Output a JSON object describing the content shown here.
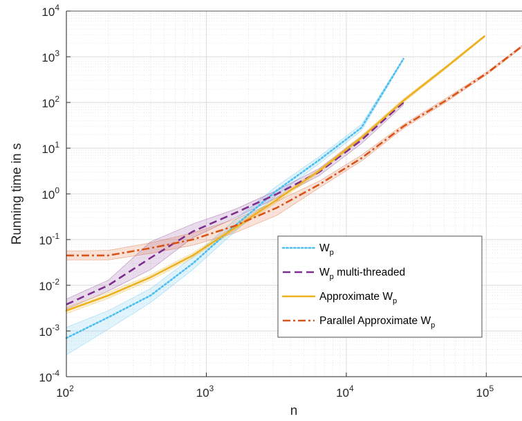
{
  "chart_data": {
    "type": "line",
    "xlabel": "n",
    "ylabel": "Running time in s",
    "x_scale": "log",
    "y_scale": "log",
    "xlim": [
      100,
      180000
    ],
    "ylim": [
      0.0001,
      10000
    ],
    "x_ticks": [
      {
        "value": 100,
        "base": "10",
        "exp": "2"
      },
      {
        "value": 1000,
        "base": "10",
        "exp": "3"
      },
      {
        "value": 10000,
        "base": "10",
        "exp": "4"
      },
      {
        "value": 100000,
        "base": "10",
        "exp": "5"
      }
    ],
    "y_ticks": [
      {
        "value": 0.0001,
        "base": "10",
        "exp": "-4"
      },
      {
        "value": 0.001,
        "base": "10",
        "exp": "-3"
      },
      {
        "value": 0.01,
        "base": "10",
        "exp": "-2"
      },
      {
        "value": 0.1,
        "base": "10",
        "exp": "-1"
      },
      {
        "value": 1,
        "base": "10",
        "exp": "0"
      },
      {
        "value": 10,
        "base": "10",
        "exp": "1"
      },
      {
        "value": 100,
        "base": "10",
        "exp": "2"
      },
      {
        "value": 1000,
        "base": "10",
        "exp": "3"
      },
      {
        "value": 10000,
        "base": "10",
        "exp": "4"
      }
    ],
    "grid": true,
    "minor_grid": true,
    "legend_position": "bottom-right",
    "series": [
      {
        "name": "W",
        "name_sub": "p",
        "color": "#4DBEEE",
        "dash": "dotted",
        "x": [
          100,
          200,
          400,
          800,
          1600,
          3200,
          6400,
          12800,
          25600
        ],
        "y": [
          0.0007,
          0.002,
          0.006,
          0.03,
          0.2,
          1.2,
          5.5,
          28,
          900
        ],
        "y_low": [
          0.0003,
          0.0011,
          0.0042,
          0.022,
          0.15,
          0.95,
          4.6,
          24,
          850
        ],
        "y_high": [
          0.0012,
          0.0028,
          0.0085,
          0.042,
          0.27,
          1.5,
          6.5,
          33,
          950
        ]
      },
      {
        "name": "W",
        "name_sub": "p",
        "name_suffix": " multi-threaded",
        "color": "#7E2F8E",
        "dash": "dashed",
        "x": [
          100,
          200,
          400,
          800,
          1600,
          3200,
          6400,
          12800,
          25600
        ],
        "y": [
          0.0038,
          0.01,
          0.04,
          0.15,
          0.38,
          1.0,
          3.0,
          15,
          100
        ],
        "y_low": [
          0.003,
          0.0075,
          0.022,
          0.11,
          0.3,
          0.82,
          2.5,
          12.5,
          88
        ],
        "y_high": [
          0.005,
          0.013,
          0.09,
          0.22,
          0.46,
          1.2,
          3.6,
          18,
          112
        ]
      },
      {
        "name": "Approximate W",
        "name_sub": "p",
        "color": "#EDB120",
        "dash": "solid",
        "x": [
          100,
          200,
          400,
          800,
          1600,
          3200,
          6400,
          12800,
          25600,
          51200,
          97000
        ],
        "y": [
          0.0028,
          0.006,
          0.015,
          0.045,
          0.18,
          0.75,
          3.2,
          17,
          110,
          580,
          2800
        ],
        "y_low": [
          0.0024,
          0.0052,
          0.013,
          0.04,
          0.16,
          0.66,
          2.9,
          15.5,
          100,
          540,
          2650
        ],
        "y_high": [
          0.0033,
          0.007,
          0.017,
          0.051,
          0.2,
          0.85,
          3.5,
          19,
          120,
          620,
          2950
        ]
      },
      {
        "name": "Parallel Approximate W",
        "name_sub": "p",
        "color": "#D95319",
        "dash": "dashdot",
        "x": [
          100,
          200,
          400,
          800,
          1600,
          3200,
          6400,
          12800,
          25600,
          51200,
          102400,
          180000
        ],
        "y": [
          0.045,
          0.045,
          0.065,
          0.1,
          0.2,
          0.5,
          1.6,
          6,
          30,
          110,
          450,
          1700
        ],
        "y_low": [
          0.036,
          0.036,
          0.05,
          0.075,
          0.14,
          0.34,
          1.35,
          5.2,
          27,
          100,
          420,
          1600
        ],
        "y_high": [
          0.056,
          0.058,
          0.085,
          0.14,
          0.28,
          0.7,
          1.9,
          7,
          33,
          122,
          480,
          1800
        ]
      }
    ]
  }
}
